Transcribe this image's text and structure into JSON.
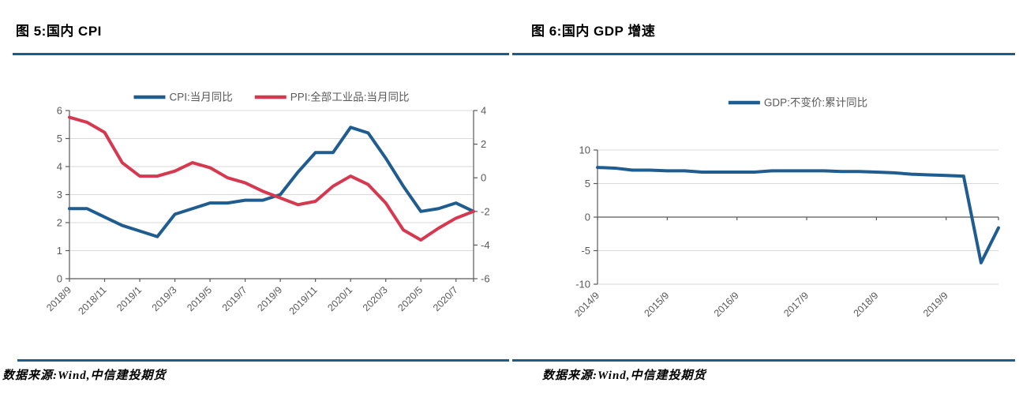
{
  "style": {
    "background": "#FFFFFF",
    "rule_color": "#1C5C8A",
    "grid_color": "#D9D9D9",
    "axis_color": "#595959",
    "tick_text_color": "#595959",
    "legend_text_color": "#595959",
    "title_color": "#000000",
    "blue_line": "#1F5C8F",
    "red_line": "#D6394F"
  },
  "figures": [
    {
      "title": "图 5:国内 CPI",
      "source": "数据来源:Wind,中信建投期货"
    },
    {
      "title": "图 6:国内 GDP 增速",
      "source": "数据来源:Wind,中信建投期货"
    }
  ],
  "chart_data": [
    {
      "type": "line",
      "title": "图 5:国内 CPI",
      "legend_position": "top",
      "grid": true,
      "x_label_every": 2,
      "x_label_rotation": -45,
      "categories": [
        "2018/9",
        "2018/10",
        "2018/11",
        "2018/12",
        "2019/1",
        "2019/2",
        "2019/3",
        "2019/4",
        "2019/5",
        "2019/6",
        "2019/7",
        "2019/8",
        "2019/9",
        "2019/10",
        "2019/11",
        "2019/12",
        "2020/1",
        "2020/2",
        "2020/3",
        "2020/4",
        "2020/5",
        "2020/6",
        "2020/7",
        "2020/8"
      ],
      "left_axis": {
        "min": 0,
        "max": 6,
        "ticks": [
          0,
          1,
          2,
          3,
          4,
          5,
          6
        ]
      },
      "right_axis": {
        "min": -6,
        "max": 4,
        "ticks": [
          -6,
          -4,
          -2,
          0,
          2,
          4
        ]
      },
      "series": [
        {
          "name": "CPI:当月同比",
          "axis": "left",
          "color": "#1F5C8F",
          "values": [
            2.5,
            2.5,
            2.2,
            1.9,
            1.7,
            1.5,
            2.3,
            2.5,
            2.7,
            2.7,
            2.8,
            2.8,
            3.0,
            3.8,
            4.5,
            4.5,
            5.4,
            5.2,
            4.3,
            3.3,
            2.4,
            2.5,
            2.7,
            2.4
          ]
        },
        {
          "name": "PPI:全部工业品:当月同比",
          "axis": "right",
          "color": "#D6394F",
          "values": [
            3.6,
            3.3,
            2.7,
            0.9,
            0.1,
            0.1,
            0.4,
            0.9,
            0.6,
            0.0,
            -0.3,
            -0.8,
            -1.2,
            -1.6,
            -1.4,
            -0.5,
            0.1,
            -0.4,
            -1.5,
            -3.1,
            -3.7,
            -3.0,
            -2.4,
            -2.0
          ]
        }
      ]
    },
    {
      "type": "line",
      "title": "图 6:国内 GDP 增速",
      "legend_position": "top",
      "grid": true,
      "x_label_every": 4,
      "x_label_rotation": -45,
      "categories": [
        "2014/9",
        "2014/12",
        "2015/3",
        "2015/6",
        "2015/9",
        "2015/12",
        "2016/3",
        "2016/6",
        "2016/9",
        "2016/12",
        "2017/3",
        "2017/6",
        "2017/9",
        "2017/12",
        "2018/3",
        "2018/6",
        "2018/9",
        "2018/12",
        "2019/3",
        "2019/6",
        "2019/9",
        "2019/12",
        "2020/3",
        "2020/6"
      ],
      "left_axis": {
        "min": -10,
        "max": 10,
        "ticks": [
          -10,
          -5,
          0,
          5,
          10
        ]
      },
      "series": [
        {
          "name": "GDP:不变价:累计同比",
          "axis": "left",
          "color": "#1F5C8F",
          "values": [
            7.4,
            7.3,
            7.0,
            7.0,
            6.9,
            6.9,
            6.7,
            6.7,
            6.7,
            6.7,
            6.9,
            6.9,
            6.9,
            6.9,
            6.8,
            6.8,
            6.7,
            6.6,
            6.4,
            6.3,
            6.2,
            6.1,
            -6.8,
            -1.6
          ]
        }
      ]
    }
  ]
}
